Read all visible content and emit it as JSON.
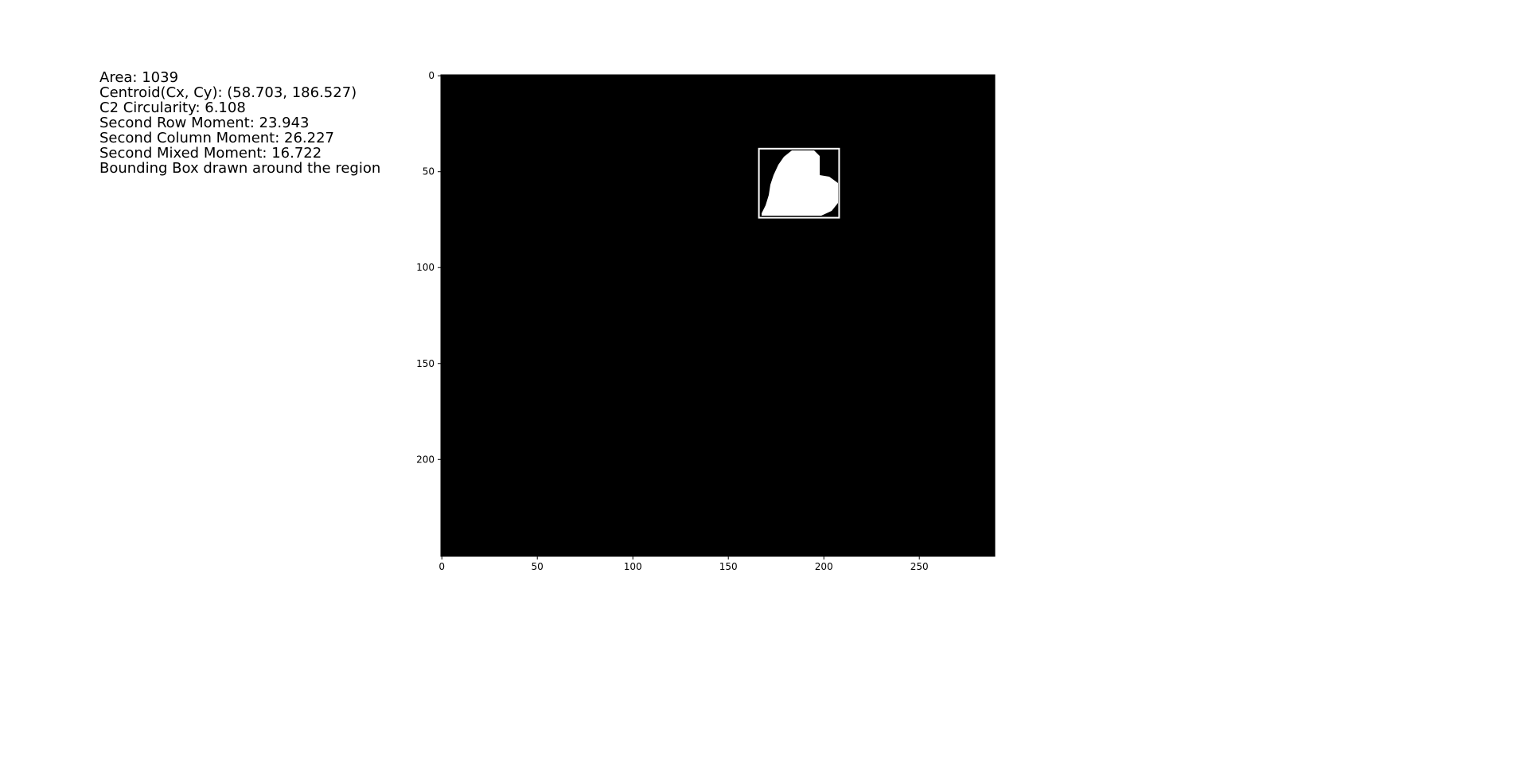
{
  "chart_data": {
    "type": "image",
    "annotations": [
      "Area: 1039",
      "Centroid(Cx, Cy): (58.703, 186.527)",
      "C2 Circularity: 6.108",
      "Second Row Moment: 23.943",
      "Second Column Moment: 26.227",
      "Second Mixed Moment: 16.722",
      "Bounding Box drawn around the region"
    ],
    "xlim": [
      -0.5,
      289.5
    ],
    "ylim": [
      250.5,
      -0.5
    ],
    "xticks": [
      0,
      50,
      100,
      150,
      200,
      250
    ],
    "yticks": [
      0,
      50,
      100,
      150,
      200
    ],
    "bounding_box": {
      "x0": 166,
      "x1": 208,
      "y0": 38,
      "y1": 74
    },
    "background": "#000000",
    "region_color": "#ffffff"
  }
}
